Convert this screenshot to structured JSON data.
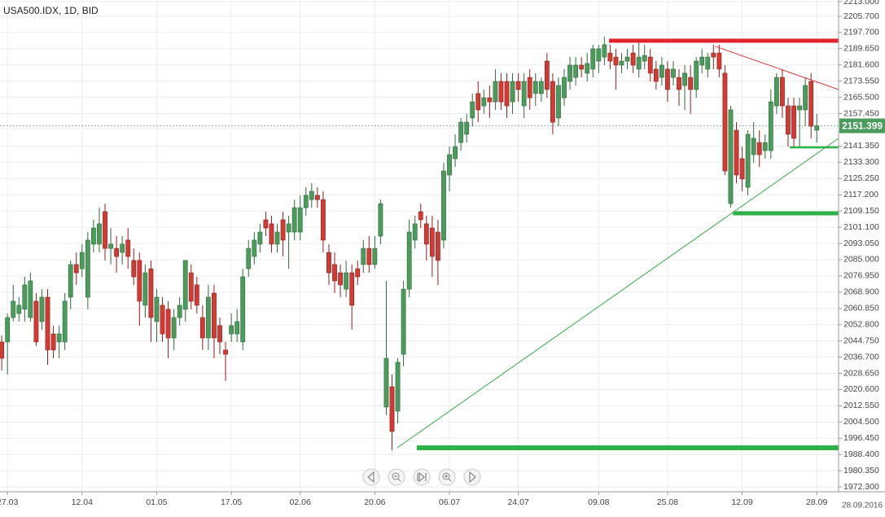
{
  "chart_data": {
    "type": "candlestick",
    "title": "USA500.IDX, 1D, BID",
    "date_label": "28.09.2016",
    "up_color": "#4b9b5c",
    "up_edge": "#2f6a3c",
    "down_color": "#d23a35",
    "down_edge": "#8f1f1b",
    "grid": true,
    "ylim": [
      1969.9,
      2213.8
    ],
    "xlim": [
      -0.3,
      145.8
    ],
    "yticks": [
      {
        "value": 2213.0,
        "label": "2213.000"
      },
      {
        "value": 2205.7,
        "label": "2205.700"
      },
      {
        "value": 2197.7,
        "label": "2197.700"
      },
      {
        "value": 2189.65,
        "label": "2189.650"
      },
      {
        "value": 2181.6,
        "label": "2181.600"
      },
      {
        "value": 2173.55,
        "label": "2173.550"
      },
      {
        "value": 2165.5,
        "label": "2165.500"
      },
      {
        "value": 2157.45,
        "label": "2157.450"
      },
      {
        "value": 2141.35,
        "label": "2141.350"
      },
      {
        "value": 2133.3,
        "label": "2133.300"
      },
      {
        "value": 2125.25,
        "label": "2125.250"
      },
      {
        "value": 2117.2,
        "label": "2117.200"
      },
      {
        "value": 2109.15,
        "label": "2109.150"
      },
      {
        "value": 2101.1,
        "label": "2101.100"
      },
      {
        "value": 2093.05,
        "label": "2093.050"
      },
      {
        "value": 2085.0,
        "label": "2085.000"
      },
      {
        "value": 2076.95,
        "label": "2076.950"
      },
      {
        "value": 2068.9,
        "label": "2068.900"
      },
      {
        "value": 2060.85,
        "label": "2060.850"
      },
      {
        "value": 2052.8,
        "label": "2052.800"
      },
      {
        "value": 2044.75,
        "label": "2044.750"
      },
      {
        "value": 2036.7,
        "label": "2036.700"
      },
      {
        "value": 2028.65,
        "label": "2028.650"
      },
      {
        "value": 2020.6,
        "label": "2020.600"
      },
      {
        "value": 2012.55,
        "label": "2012.550"
      },
      {
        "value": 2004.5,
        "label": "2004.500"
      },
      {
        "value": 1996.45,
        "label": "1996.450"
      },
      {
        "value": 1988.4,
        "label": "1988.400"
      },
      {
        "value": 1980.35,
        "label": "1980.350"
      },
      {
        "value": 1972.3,
        "label": "1972.300"
      }
    ],
    "last_price": 2151.399,
    "last_price_color": "#4b9b5c",
    "categories": [
      null,
      "27.03",
      null,
      null,
      null,
      null,
      null,
      null,
      null,
      null,
      null,
      null,
      null,
      null,
      "12.04",
      null,
      null,
      null,
      null,
      null,
      null,
      null,
      null,
      null,
      null,
      null,
      null,
      "01.05",
      null,
      null,
      null,
      null,
      null,
      null,
      null,
      null,
      null,
      null,
      null,
      null,
      "17.05",
      null,
      null,
      null,
      null,
      null,
      null,
      null,
      null,
      null,
      null,
      null,
      "02.06",
      null,
      null,
      null,
      null,
      null,
      null,
      null,
      null,
      null,
      null,
      null,
      null,
      "20.06",
      null,
      null,
      null,
      null,
      null,
      null,
      null,
      null,
      null,
      null,
      null,
      null,
      "06.07",
      null,
      null,
      null,
      null,
      null,
      null,
      null,
      null,
      null,
      null,
      null,
      "24.07",
      null,
      null,
      null,
      null,
      null,
      null,
      null,
      null,
      null,
      null,
      null,
      null,
      null,
      "09.08",
      null,
      null,
      null,
      null,
      null,
      null,
      null,
      null,
      null,
      null,
      null,
      "25.08",
      null,
      null,
      null,
      null,
      null,
      null,
      null,
      null,
      null,
      null,
      null,
      null,
      "12.09",
      null,
      null,
      null,
      null,
      null,
      null,
      null,
      null,
      null,
      null,
      null,
      null,
      "28.09"
    ],
    "ohlc": [
      [
        2044.2,
        2047.4,
        2030.1,
        2036.1
      ],
      [
        2044.2,
        2058.3,
        2028.1,
        2056.3
      ],
      [
        2056.3,
        2072.5,
        2054.3,
        2064.4
      ],
      [
        2058.3,
        2066.4,
        2054.3,
        2062.4
      ],
      [
        2060.4,
        2076.5,
        2054.3,
        2072.5
      ],
      [
        2056.3,
        2078.5,
        2054.3,
        2074.5
      ],
      [
        2064.4,
        2068.4,
        2042.2,
        2044.2
      ],
      [
        2054.3,
        2070.4,
        2050.3,
        2066.4
      ],
      [
        2066.4,
        2070.4,
        2032.9,
        2040.2
      ],
      [
        2048.2,
        2052.3,
        2036.1,
        2040.2
      ],
      [
        2044.2,
        2052.3,
        2036.1,
        2048.2
      ],
      [
        2044.2,
        2068.4,
        2040.2,
        2064.4
      ],
      [
        2066.4,
        2084.6,
        2060.4,
        2082.6
      ],
      [
        2082.6,
        2088.6,
        2072.5,
        2078.5
      ],
      [
        2080.5,
        2092.7,
        2076.5,
        2088.6
      ],
      [
        2066.4,
        2098.7,
        2060.4,
        2094.7
      ],
      [
        2092.7,
        2104.8,
        2088.6,
        2100.7
      ],
      [
        2092.7,
        2110.8,
        2088.6,
        2102.8
      ],
      [
        2108.8,
        2112.8,
        2084.6,
        2090.6
      ],
      [
        2090.6,
        2100.7,
        2082.6,
        2092.7
      ],
      [
        2090.6,
        2096.7,
        2078.5,
        2086.6
      ],
      [
        2088.6,
        2096.7,
        2082.6,
        2092.7
      ],
      [
        2094.7,
        2100.7,
        2080.5,
        2086.6
      ],
      [
        2084.6,
        2090.6,
        2072.5,
        2076.5
      ],
      [
        2084.6,
        2088.6,
        2052.3,
        2064.4
      ],
      [
        2062.4,
        2082.6,
        2056.3,
        2078.5
      ],
      [
        2080.5,
        2084.6,
        2044.2,
        2056.3
      ],
      [
        2054.3,
        2070.4,
        2044.2,
        2066.4
      ],
      [
        2062.4,
        2066.4,
        2044.2,
        2048.2
      ],
      [
        2060.4,
        2064.4,
        2036.1,
        2046.2
      ],
      [
        2046.2,
        2060.4,
        2040.2,
        2056.3
      ],
      [
        2056.3,
        2066.4,
        2052.3,
        2062.4
      ],
      [
        2060.4,
        2084.6,
        2054.3,
        2084.6
      ],
      [
        2078.5,
        2082.6,
        2060.4,
        2064.4
      ],
      [
        2072.5,
        2076.5,
        2058.3,
        2062.4
      ],
      [
        2056.3,
        2062.4,
        2040.2,
        2046.2
      ],
      [
        2046.2,
        2072.5,
        2040.2,
        2066.4
      ],
      [
        2068.4,
        2072.5,
        2036.1,
        2046.2
      ],
      [
        2052.3,
        2056.3,
        2038.1,
        2044.2
      ],
      [
        2040.2,
        2044.2,
        2024.8,
        2038.1
      ],
      [
        2048.2,
        2058.3,
        2044.2,
        2052.3
      ],
      [
        2048.2,
        2060.4,
        2044.2,
        2054.3
      ],
      [
        2044.2,
        2080.5,
        2040.2,
        2076.5
      ],
      [
        2080.5,
        2094.7,
        2076.5,
        2090.6
      ],
      [
        2086.6,
        2098.7,
        2082.6,
        2094.7
      ],
      [
        2092.7,
        2102.8,
        2088.6,
        2098.7
      ],
      [
        2104.8,
        2108.8,
        2096.7,
        2100.7
      ],
      [
        2102.8,
        2106.8,
        2088.6,
        2092.7
      ],
      [
        2092.7,
        2102.8,
        2088.6,
        2098.7
      ],
      [
        2104.8,
        2108.8,
        2086.6,
        2094.7
      ],
      [
        2098.7,
        2106.8,
        2080.5,
        2102.8
      ],
      [
        2098.7,
        2114.8,
        2094.7,
        2110.8
      ],
      [
        2098.7,
        2116.9,
        2094.7,
        2110.8
      ],
      [
        2110.8,
        2121.0,
        2106.8,
        2116.9
      ],
      [
        2114.8,
        2122.9,
        2110.8,
        2118.9
      ],
      [
        2116.9,
        2120.9,
        2110.8,
        2114.8
      ],
      [
        2114.8,
        2118.9,
        2088.6,
        2094.7
      ],
      [
        2088.6,
        2092.7,
        2072.5,
        2078.5
      ],
      [
        2082.6,
        2088.6,
        2068.4,
        2074.5
      ],
      [
        2078.5,
        2082.6,
        2066.4,
        2072.5
      ],
      [
        2070.4,
        2084.6,
        2066.4,
        2078.5
      ],
      [
        2078.5,
        2082.6,
        2050.3,
        2062.4
      ],
      [
        2080.5,
        2084.6,
        2072.5,
        2076.5
      ],
      [
        2082.6,
        2094.7,
        2078.5,
        2090.6
      ],
      [
        2090.6,
        2096.7,
        2078.5,
        2082.6
      ],
      [
        2082.6,
        2096.7,
        2080.5,
        2090.6
      ],
      [
        2096.7,
        2114.8,
        2092.7,
        2112.8
      ],
      [
        2011.9,
        2074.5,
        2007.9,
        2036.1
      ],
      [
        2022.0,
        2028.1,
        1990.5,
        1999.8
      ],
      [
        2009.9,
        2036.1,
        2003.8,
        2034.1
      ],
      [
        2038.1,
        2074.5,
        2032.1,
        2070.4
      ],
      [
        2070.4,
        2104.8,
        2066.4,
        2098.7
      ],
      [
        2094.7,
        2106.8,
        2090.6,
        2102.8
      ],
      [
        2108.8,
        2112.8,
        2100.7,
        2104.8
      ],
      [
        2102.8,
        2106.8,
        2084.6,
        2092.7
      ],
      [
        2100.7,
        2106.8,
        2076.5,
        2086.6
      ],
      [
        2098.7,
        2104.8,
        2072.5,
        2084.6
      ],
      [
        2094.7,
        2133.0,
        2090.6,
        2129.0
      ],
      [
        2127.0,
        2141.1,
        2118.9,
        2137.1
      ],
      [
        2135.1,
        2147.2,
        2131.0,
        2141.1
      ],
      [
        2143.1,
        2155.3,
        2139.1,
        2153.2
      ],
      [
        2147.2,
        2157.3,
        2143.1,
        2153.2
      ],
      [
        2155.3,
        2167.4,
        2151.2,
        2163.3
      ],
      [
        2167.4,
        2173.4,
        2153.2,
        2159.3
      ],
      [
        2161.3,
        2169.4,
        2157.3,
        2165.3
      ],
      [
        2165.3,
        2171.4,
        2155.3,
        2163.3
      ],
      [
        2163.3,
        2179.5,
        2159.3,
        2173.4
      ],
      [
        2173.4,
        2177.5,
        2159.3,
        2163.3
      ],
      [
        2173.4,
        2177.5,
        2155.3,
        2161.3
      ],
      [
        2163.3,
        2177.5,
        2157.3,
        2173.4
      ],
      [
        2173.4,
        2177.5,
        2163.3,
        2169.4
      ],
      [
        2161.3,
        2177.5,
        2155.3,
        2173.4
      ],
      [
        2175.4,
        2179.5,
        2159.3,
        2165.3
      ],
      [
        2167.4,
        2177.5,
        2161.3,
        2173.4
      ],
      [
        2167.4,
        2175.4,
        2163.3,
        2173.4
      ],
      [
        2183.5,
        2187.5,
        2165.3,
        2169.4
      ],
      [
        2173.4,
        2177.5,
        2147.2,
        2153.2
      ],
      [
        2155.3,
        2175.4,
        2151.2,
        2171.4
      ],
      [
        2165.3,
        2179.5,
        2161.3,
        2175.4
      ],
      [
        2173.4,
        2185.5,
        2169.4,
        2181.5
      ],
      [
        2175.4,
        2185.5,
        2171.4,
        2181.5
      ],
      [
        2181.5,
        2185.5,
        2175.4,
        2179.5
      ],
      [
        2177.5,
        2187.5,
        2173.4,
        2182.3
      ],
      [
        2179.5,
        2191.6,
        2175.4,
        2189.6
      ],
      [
        2183.5,
        2191.6,
        2177.5,
        2189.6
      ],
      [
        2185.5,
        2195.6,
        2181.5,
        2191.6
      ],
      [
        2187.5,
        2191.6,
        2179.5,
        2183.5
      ],
      [
        2185.5,
        2189.6,
        2169.4,
        2181.5
      ],
      [
        2181.5,
        2187.5,
        2177.5,
        2183.5
      ],
      [
        2183.5,
        2189.6,
        2179.5,
        2185.5
      ],
      [
        2187.5,
        2191.6,
        2177.5,
        2181.5
      ],
      [
        2179.5,
        2193.6,
        2175.4,
        2185.5
      ],
      [
        2183.5,
        2191.6,
        2179.5,
        2186.3
      ],
      [
        2185.5,
        2189.6,
        2173.4,
        2177.5
      ],
      [
        2179.5,
        2183.5,
        2169.4,
        2173.4
      ],
      [
        2175.4,
        2185.5,
        2171.4,
        2181.5
      ],
      [
        2179.5,
        2183.5,
        2163.3,
        2169.4
      ],
      [
        2175.4,
        2183.5,
        2171.4,
        2179.5
      ],
      [
        2175.4,
        2179.5,
        2161.3,
        2169.4
      ],
      [
        2171.4,
        2181.5,
        2159.3,
        2177.5
      ],
      [
        2175.4,
        2181.5,
        2157.3,
        2169.4
      ],
      [
        2169.4,
        2185.5,
        2165.3,
        2183.5
      ],
      [
        2181.5,
        2189.6,
        2177.5,
        2185.5
      ],
      [
        2179.5,
        2187.5,
        2175.4,
        2185.5
      ],
      [
        2187.5,
        2191.6,
        2179.5,
        2185.5
      ],
      [
        2187.5,
        2191.6,
        2175.4,
        2179.5
      ],
      [
        2177.5,
        2181.5,
        2127.0,
        2129.0
      ],
      [
        2112.8,
        2161.3,
        2110.8,
        2159.3
      ],
      [
        2149.2,
        2153.2,
        2122.9,
        2127.0
      ],
      [
        2135.1,
        2141.1,
        2118.9,
        2125.0
      ],
      [
        2120.9,
        2149.2,
        2116.9,
        2147.2
      ],
      [
        2137.1,
        2153.2,
        2133.0,
        2145.2
      ],
      [
        2143.1,
        2149.2,
        2131.0,
        2137.1
      ],
      [
        2139.1,
        2147.2,
        2135.1,
        2143.1
      ],
      [
        2139.1,
        2169.4,
        2135.1,
        2163.3
      ],
      [
        2161.3,
        2177.5,
        2157.3,
        2175.4
      ],
      [
        2175.4,
        2179.5,
        2155.3,
        2161.3
      ],
      [
        2161.3,
        2165.3,
        2141.1,
        2147.2
      ],
      [
        2161.3,
        2165.3,
        2141.1,
        2145.2
      ],
      [
        2159.3,
        2165.3,
        2141.1,
        2161.3
      ],
      [
        2159.3,
        2175.4,
        2151.2,
        2171.4
      ],
      [
        2173.4,
        2177.5,
        2145.2,
        2151.2
      ],
      [
        2149.2,
        2157.3,
        2143.1,
        2151.4
      ]
    ],
    "drawings": [
      {
        "kind": "hline",
        "color": "#e0232a",
        "width": 5,
        "from": 105.8,
        "price": 2193.6
      },
      {
        "kind": "trend",
        "color": "#d8333a",
        "width": 1,
        "x": [
          124.3,
          145.8
        ],
        "price": [
          2190.8,
          2169.4
        ]
      },
      {
        "kind": "hline",
        "color": "#2db24a",
        "width": 5,
        "from": 127.4,
        "price": 2108.0
      },
      {
        "kind": "hline",
        "color": "#2db24a",
        "width": 6,
        "from": 72.3,
        "price": 1991.7
      },
      {
        "kind": "hline",
        "color": "#2db24a",
        "width": 2.5,
        "from": 137.3,
        "price": 2140.7
      },
      {
        "kind": "trend",
        "color": "#3aa84a",
        "width": 1,
        "x": [
          68.9,
          145.8
        ],
        "price": [
          1991.7,
          2145.2
        ]
      }
    ]
  }
}
